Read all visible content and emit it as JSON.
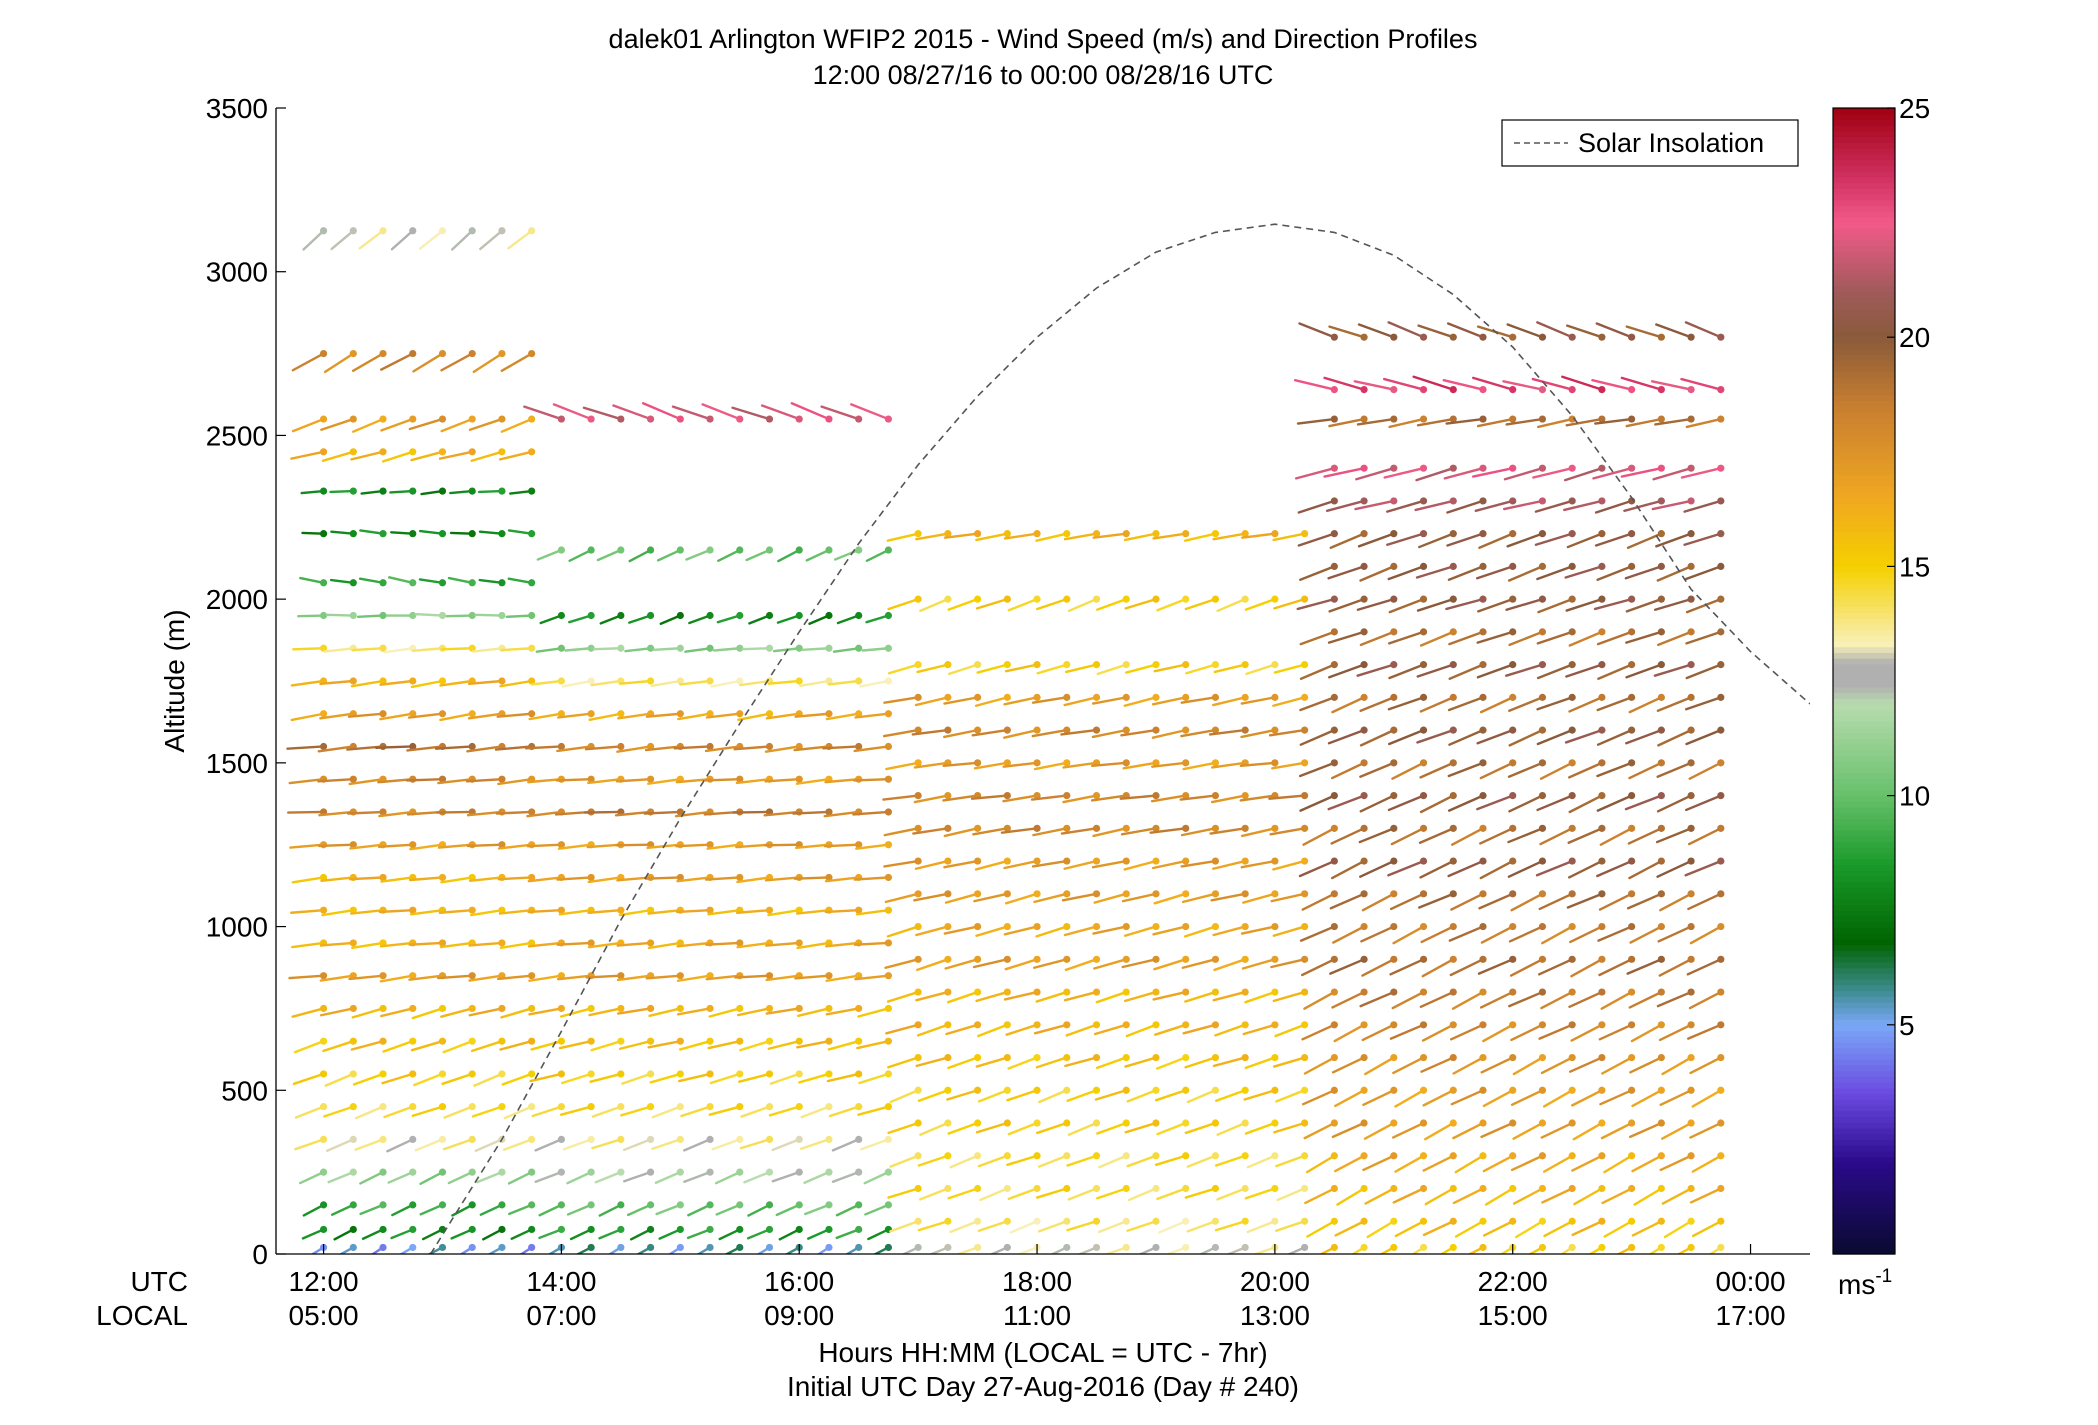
{
  "chart_data": {
    "type": "wind-barb-profile",
    "title": "dalek01 Arlington WFIP2 2015 - Wind Speed (m/s) and Direction Profiles",
    "subtitle": "12:00 08/27/16 to 00:00 08/28/16  UTC",
    "ylabel": "Altitude (m)",
    "xlabel": "Hours HH:MM  (LOCAL = UTC - 7hr)",
    "xlabel2": "Initial UTC Day 27-Aug-2016 (Day # 240)",
    "x_row_labels": [
      "UTC",
      "LOCAL"
    ],
    "x_ticks_utc": [
      "12:00",
      "14:00",
      "16:00",
      "18:00",
      "20:00",
      "22:00",
      "00:00"
    ],
    "x_ticks_local": [
      "05:00",
      "07:00",
      "09:00",
      "11:00",
      "13:00",
      "15:00",
      "17:00"
    ],
    "x_tick_hours": [
      12,
      14,
      16,
      18,
      20,
      22,
      24
    ],
    "xlim": [
      11.6,
      24.5
    ],
    "ylim": [
      0,
      3500
    ],
    "y_ticks": [
      0,
      500,
      1000,
      1500,
      2000,
      2500,
      3000,
      3500
    ],
    "legend": {
      "label": "Solar Insolation",
      "placement": "top-right",
      "style": "dashed"
    },
    "colorbar": {
      "unit_label": "ms",
      "unit_exponent": "-1",
      "range": [
        0,
        25
      ],
      "ticks": [
        5,
        10,
        15,
        20,
        25
      ],
      "stops": [
        {
          "v": 0,
          "c": "#0a0a30"
        },
        {
          "v": 2,
          "c": "#2a0a8a"
        },
        {
          "v": 3.5,
          "c": "#6a4ae0"
        },
        {
          "v": 5,
          "c": "#7aa8f8"
        },
        {
          "v": 5.8,
          "c": "#3a8a8a"
        },
        {
          "v": 6.8,
          "c": "#006400"
        },
        {
          "v": 8.5,
          "c": "#1a9a2a"
        },
        {
          "v": 10,
          "c": "#66c06a"
        },
        {
          "v": 12,
          "c": "#b8dcae"
        },
        {
          "v": 12.4,
          "c": "#b0b0b0"
        },
        {
          "v": 12.9,
          "c": "#b0b0b0"
        },
        {
          "v": 13.3,
          "c": "#f8f0b8"
        },
        {
          "v": 15,
          "c": "#f5d000"
        },
        {
          "v": 16.5,
          "c": "#f0a820"
        },
        {
          "v": 18.5,
          "c": "#c87e30"
        },
        {
          "v": 20,
          "c": "#8a5a3a"
        },
        {
          "v": 21,
          "c": "#a05a5a"
        },
        {
          "v": 22.5,
          "c": "#f25a8a"
        },
        {
          "v": 23.5,
          "c": "#d03060"
        },
        {
          "v": 25,
          "c": "#a00010"
        }
      ]
    },
    "profile_times_hours": [
      12.0,
      12.25,
      12.5,
      12.75,
      13.0,
      13.25,
      13.5,
      13.75,
      14.0,
      14.25,
      14.5,
      14.75,
      15.0,
      15.25,
      15.5,
      15.75,
      16.0,
      16.25,
      16.5,
      16.75,
      17.0,
      17.25,
      17.5,
      17.75,
      18.0,
      18.25,
      18.5,
      18.75,
      19.0,
      19.25,
      19.5,
      19.75,
      20.0,
      20.25,
      20.5,
      20.75,
      21.0,
      21.25,
      21.5,
      21.75,
      22.0,
      22.25,
      22.5,
      22.75,
      23.0,
      23.25,
      23.5,
      23.75
    ],
    "profiles": [
      {
        "from": 0,
        "to": 8,
        "levels": [
          {
            "alt": 3125,
            "speed": 13,
            "dir": 230
          },
          {
            "alt": 2750,
            "speed": 18,
            "dir": 240
          },
          {
            "alt": 2550,
            "speed": 17,
            "dir": 250
          },
          {
            "alt": 2450,
            "speed": 16,
            "dir": 255
          },
          {
            "alt": 2330,
            "speed": 8,
            "dir": 265
          },
          {
            "alt": 2200,
            "speed": 8,
            "dir": 275
          },
          {
            "alt": 2050,
            "speed": 9,
            "dir": 280
          },
          {
            "alt": 1950,
            "speed": 11,
            "dir": 270
          },
          {
            "alt": 1850,
            "speed": 14,
            "dir": 265
          },
          {
            "alt": 1750,
            "speed": 16,
            "dir": 262
          },
          {
            "alt": 1650,
            "speed": 17,
            "dir": 262
          },
          {
            "alt": 1550,
            "speed": 19,
            "dir": 265
          },
          {
            "alt": 1450,
            "speed": 18,
            "dir": 265
          },
          {
            "alt": 1350,
            "speed": 18,
            "dir": 266
          },
          {
            "alt": 1250,
            "speed": 17,
            "dir": 265
          },
          {
            "alt": 1150,
            "speed": 16,
            "dir": 264
          },
          {
            "alt": 1050,
            "speed": 16,
            "dir": 264
          },
          {
            "alt": 950,
            "speed": 16,
            "dir": 264
          },
          {
            "alt": 850,
            "speed": 17,
            "dir": 263
          },
          {
            "alt": 750,
            "speed": 16,
            "dir": 255
          },
          {
            "alt": 650,
            "speed": 15.5,
            "dir": 252
          },
          {
            "alt": 550,
            "speed": 15,
            "dir": 250
          },
          {
            "alt": 450,
            "speed": 14.5,
            "dir": 250
          },
          {
            "alt": 350,
            "speed": 13.5,
            "dir": 248
          },
          {
            "alt": 250,
            "speed": 11,
            "dir": 245
          },
          {
            "alt": 150,
            "speed": 9,
            "dir": 245
          },
          {
            "alt": 75,
            "speed": 8,
            "dir": 245
          },
          {
            "alt": 20,
            "speed": 5,
            "dir": 240
          }
        ]
      },
      {
        "from": 8,
        "to": 20,
        "levels": [
          {
            "alt": 2550,
            "speed": 22,
            "dir": 290
          },
          {
            "alt": 2150,
            "speed": 10,
            "dir": 245
          },
          {
            "alt": 1950,
            "speed": 8,
            "dir": 250
          },
          {
            "alt": 1850,
            "speed": 11,
            "dir": 265
          },
          {
            "alt": 1750,
            "speed": 14,
            "dir": 262
          },
          {
            "alt": 1650,
            "speed": 16.5,
            "dir": 262
          },
          {
            "alt": 1550,
            "speed": 18,
            "dir": 264
          },
          {
            "alt": 1450,
            "speed": 17,
            "dir": 265
          },
          {
            "alt": 1350,
            "speed": 18.5,
            "dir": 266
          },
          {
            "alt": 1250,
            "speed": 17,
            "dir": 266
          },
          {
            "alt": 1150,
            "speed": 17,
            "dir": 265
          },
          {
            "alt": 1050,
            "speed": 16,
            "dir": 264
          },
          {
            "alt": 950,
            "speed": 16.5,
            "dir": 264
          },
          {
            "alt": 850,
            "speed": 17,
            "dir": 264
          },
          {
            "alt": 750,
            "speed": 16,
            "dir": 258
          },
          {
            "alt": 650,
            "speed": 15.5,
            "dir": 256
          },
          {
            "alt": 550,
            "speed": 15,
            "dir": 254
          },
          {
            "alt": 450,
            "speed": 14.5,
            "dir": 252
          },
          {
            "alt": 350,
            "speed": 13.5,
            "dir": 250
          },
          {
            "alt": 250,
            "speed": 12,
            "dir": 248
          },
          {
            "alt": 150,
            "speed": 10,
            "dir": 246
          },
          {
            "alt": 75,
            "speed": 8.5,
            "dir": 246
          },
          {
            "alt": 20,
            "speed": 5.5,
            "dir": 240
          }
        ]
      },
      {
        "from": 20,
        "to": 34,
        "levels": [
          {
            "alt": 2200,
            "speed": 16,
            "dir": 260
          },
          {
            "alt": 2000,
            "speed": 15,
            "dir": 250
          },
          {
            "alt": 1800,
            "speed": 15,
            "dir": 255
          },
          {
            "alt": 1700,
            "speed": 17,
            "dir": 258
          },
          {
            "alt": 1600,
            "speed": 18,
            "dir": 260
          },
          {
            "alt": 1500,
            "speed": 17,
            "dir": 262
          },
          {
            "alt": 1400,
            "speed": 18,
            "dir": 262
          },
          {
            "alt": 1300,
            "speed": 18,
            "dir": 260
          },
          {
            "alt": 1200,
            "speed": 17,
            "dir": 258
          },
          {
            "alt": 1100,
            "speed": 17,
            "dir": 256
          },
          {
            "alt": 1000,
            "speed": 16.5,
            "dir": 255
          },
          {
            "alt": 900,
            "speed": 17,
            "dir": 254
          },
          {
            "alt": 800,
            "speed": 16,
            "dir": 254
          },
          {
            "alt": 700,
            "speed": 16,
            "dir": 252
          },
          {
            "alt": 600,
            "speed": 15.5,
            "dir": 252
          },
          {
            "alt": 500,
            "speed": 15,
            "dir": 250
          },
          {
            "alt": 400,
            "speed": 15,
            "dir": 250
          },
          {
            "alt": 300,
            "speed": 14.5,
            "dir": 250
          },
          {
            "alt": 200,
            "speed": 14.5,
            "dir": 250
          },
          {
            "alt": 100,
            "speed": 14,
            "dir": 250
          },
          {
            "alt": 20,
            "speed": 13,
            "dir": 248
          }
        ]
      },
      {
        "from": 34,
        "to": 48,
        "levels": [
          {
            "alt": 2800,
            "speed": 20,
            "dir": 290
          },
          {
            "alt": 2640,
            "speed": 23,
            "dir": 285
          },
          {
            "alt": 2550,
            "speed": 19,
            "dir": 260
          },
          {
            "alt": 2400,
            "speed": 22,
            "dir": 255
          },
          {
            "alt": 2300,
            "speed": 21,
            "dir": 255
          },
          {
            "alt": 2200,
            "speed": 20,
            "dir": 250
          },
          {
            "alt": 2100,
            "speed": 20,
            "dir": 250
          },
          {
            "alt": 2000,
            "speed": 20,
            "dir": 252
          },
          {
            "alt": 1900,
            "speed": 19,
            "dir": 250
          },
          {
            "alt": 1800,
            "speed": 20,
            "dir": 250
          },
          {
            "alt": 1700,
            "speed": 19,
            "dir": 248
          },
          {
            "alt": 1600,
            "speed": 20,
            "dir": 248
          },
          {
            "alt": 1500,
            "speed": 19,
            "dir": 246
          },
          {
            "alt": 1400,
            "speed": 20,
            "dir": 246
          },
          {
            "alt": 1300,
            "speed": 19,
            "dir": 245
          },
          {
            "alt": 1200,
            "speed": 20,
            "dir": 245
          },
          {
            "alt": 1100,
            "speed": 19,
            "dir": 245
          },
          {
            "alt": 1000,
            "speed": 18.5,
            "dir": 244
          },
          {
            "alt": 900,
            "speed": 19,
            "dir": 244
          },
          {
            "alt": 800,
            "speed": 18.5,
            "dir": 244
          },
          {
            "alt": 700,
            "speed": 18,
            "dir": 244
          },
          {
            "alt": 600,
            "speed": 17.5,
            "dir": 243
          },
          {
            "alt": 500,
            "speed": 17,
            "dir": 243
          },
          {
            "alt": 400,
            "speed": 17,
            "dir": 243
          },
          {
            "alt": 300,
            "speed": 16.5,
            "dir": 242
          },
          {
            "alt": 200,
            "speed": 16,
            "dir": 242
          },
          {
            "alt": 100,
            "speed": 15.5,
            "dir": 242
          },
          {
            "alt": 20,
            "speed": 15,
            "dir": 240
          }
        ]
      }
    ],
    "solar_insolation": {
      "x": [
        12.9,
        13.5,
        14.0,
        14.5,
        15.0,
        15.5,
        16.0,
        16.5,
        17.0,
        17.5,
        18.0,
        18.5,
        19.0,
        19.5,
        20.0,
        20.5,
        21.0,
        21.5,
        22.0,
        22.5,
        23.0,
        23.5,
        24.0,
        24.5
      ],
      "y": [
        0,
        350,
        680,
        1020,
        1330,
        1620,
        1900,
        2170,
        2410,
        2620,
        2800,
        2950,
        3060,
        3120,
        3145,
        3120,
        3050,
        2930,
        2770,
        2560,
        2310,
        2030,
        1840,
        1680
      ]
    }
  }
}
